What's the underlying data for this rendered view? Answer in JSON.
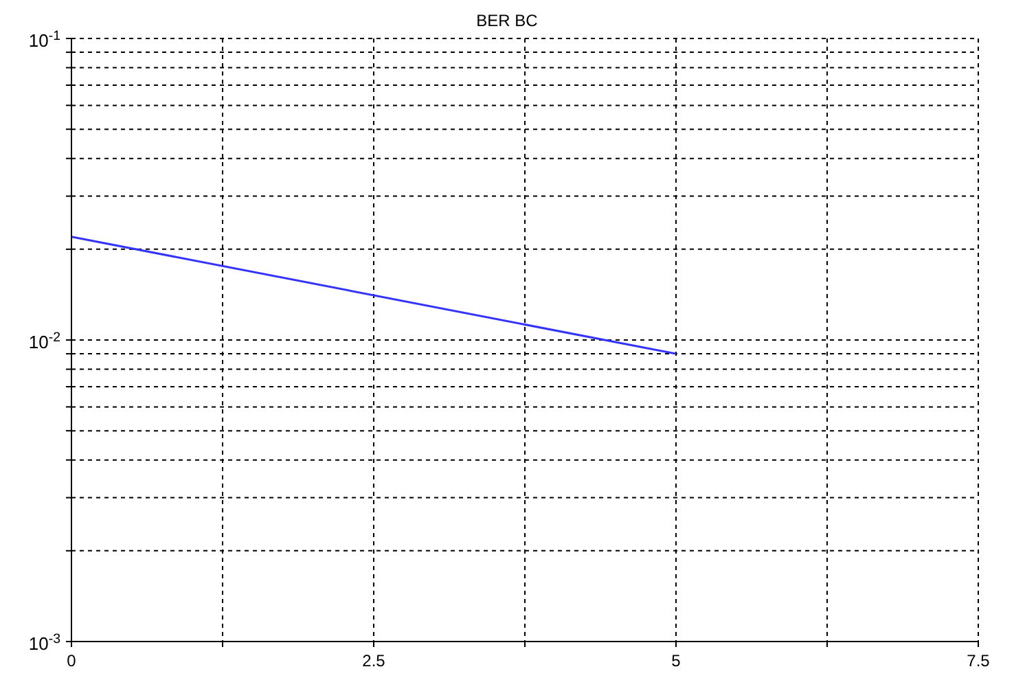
{
  "chart_data": {
    "type": "line",
    "title": "BER BC",
    "x": [
      0,
      5
    ],
    "series": [
      {
        "color": "#3333ff",
        "values": [
          0.022,
          0.009
        ]
      }
    ],
    "xlim": [
      0,
      7.5
    ],
    "xticks": [
      0,
      {
        "value": 1.25,
        "label": null
      },
      2.5,
      {
        "value": 3.75,
        "label": null
      },
      5,
      {
        "value": 6.25,
        "label": null
      },
      7.5
    ],
    "ylim": [
      0.001,
      0.1
    ],
    "yticks": [
      {
        "value": 0.001,
        "label": "10$^{-3}$"
      },
      {
        "value": 0.002,
        "label": null
      },
      {
        "value": 0.003,
        "label": null
      },
      {
        "value": 0.004,
        "label": null
      },
      {
        "value": 0.005,
        "label": null
      },
      {
        "value": 0.006,
        "label": null
      },
      {
        "value": 0.007,
        "label": null
      },
      {
        "value": 0.008,
        "label": null
      },
      {
        "value": 0.009,
        "label": null
      },
      {
        "value": 0.01,
        "label": "10$^{-2}$"
      },
      {
        "value": 0.02,
        "label": null
      },
      {
        "value": 0.03,
        "label": null
      },
      {
        "value": 0.04,
        "label": null
      },
      {
        "value": 0.05,
        "label": null
      },
      {
        "value": 0.06,
        "label": null
      },
      {
        "value": 0.07,
        "label": null
      },
      {
        "value": 0.08,
        "label": null
      },
      {
        "value": 0.09,
        "label": null
      },
      {
        "value": 0.1,
        "label": "10$^{-1}$"
      }
    ],
    "log": "y",
    "grid": true,
    "marker": "none",
    "line_style": "solid"
  }
}
